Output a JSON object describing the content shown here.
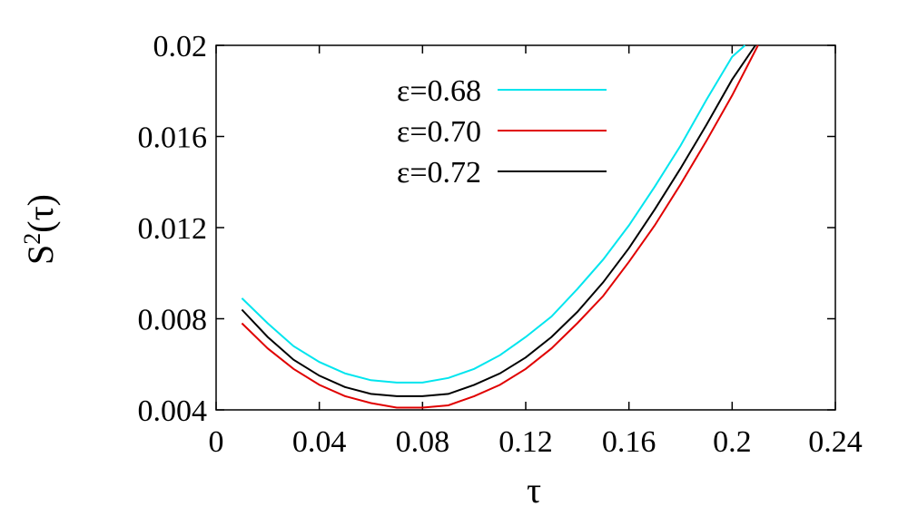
{
  "chart_data": {
    "type": "line",
    "title": "",
    "xlabel": "τ",
    "ylabel_base": "S",
    "ylabel_sup": "2",
    "ylabel_tail": "(τ)",
    "xlim": [
      0,
      0.24
    ],
    "ylim": [
      0.004,
      0.02
    ],
    "xticks": [
      0,
      0.04,
      0.08,
      0.12,
      0.16,
      0.2,
      0.24
    ],
    "xtick_labels": [
      "0",
      "0.04",
      "0.08",
      "0.12",
      "0.16",
      "0.2",
      "0.24"
    ],
    "yticks": [
      0.004,
      0.008,
      0.012,
      0.016,
      0.02
    ],
    "ytick_labels": [
      "0.004",
      "0.008",
      "0.012",
      "0.016",
      "0.02"
    ],
    "grid": false,
    "legend_position": "top-center",
    "series": [
      {
        "name": "ε=0.68",
        "color": "#00e5ee",
        "x": [
          0.01,
          0.02,
          0.03,
          0.04,
          0.05,
          0.06,
          0.07,
          0.08,
          0.09,
          0.1,
          0.11,
          0.12,
          0.13,
          0.14,
          0.15,
          0.16,
          0.17,
          0.18,
          0.19,
          0.2,
          0.205
        ],
        "y": [
          0.0089,
          0.0078,
          0.0068,
          0.0061,
          0.0056,
          0.0053,
          0.0052,
          0.0052,
          0.0054,
          0.0058,
          0.0064,
          0.0072,
          0.0081,
          0.0093,
          0.0106,
          0.0121,
          0.0138,
          0.0156,
          0.0176,
          0.0195,
          0.0201
        ]
      },
      {
        "name": "ε=0.70",
        "color": "#e00000",
        "x": [
          0.01,
          0.02,
          0.03,
          0.04,
          0.05,
          0.06,
          0.07,
          0.08,
          0.09,
          0.1,
          0.11,
          0.12,
          0.13,
          0.14,
          0.15,
          0.16,
          0.17,
          0.18,
          0.19,
          0.2,
          0.21
        ],
        "y": [
          0.0078,
          0.0067,
          0.0058,
          0.0051,
          0.0046,
          0.0043,
          0.0041,
          0.0041,
          0.0042,
          0.0046,
          0.0051,
          0.0058,
          0.0067,
          0.0078,
          0.009,
          0.0105,
          0.0121,
          0.0139,
          0.0158,
          0.0178,
          0.0201
        ]
      },
      {
        "name": "ε=0.72",
        "color": "#000000",
        "x": [
          0.01,
          0.02,
          0.03,
          0.04,
          0.05,
          0.06,
          0.07,
          0.08,
          0.09,
          0.1,
          0.11,
          0.12,
          0.13,
          0.14,
          0.15,
          0.16,
          0.17,
          0.18,
          0.19,
          0.2,
          0.209
        ],
        "y": [
          0.0084,
          0.0072,
          0.0062,
          0.0055,
          0.005,
          0.0047,
          0.0046,
          0.0046,
          0.0047,
          0.0051,
          0.0056,
          0.0063,
          0.0072,
          0.0083,
          0.0096,
          0.0111,
          0.0128,
          0.0146,
          0.0165,
          0.0185,
          0.0201
        ]
      }
    ]
  }
}
